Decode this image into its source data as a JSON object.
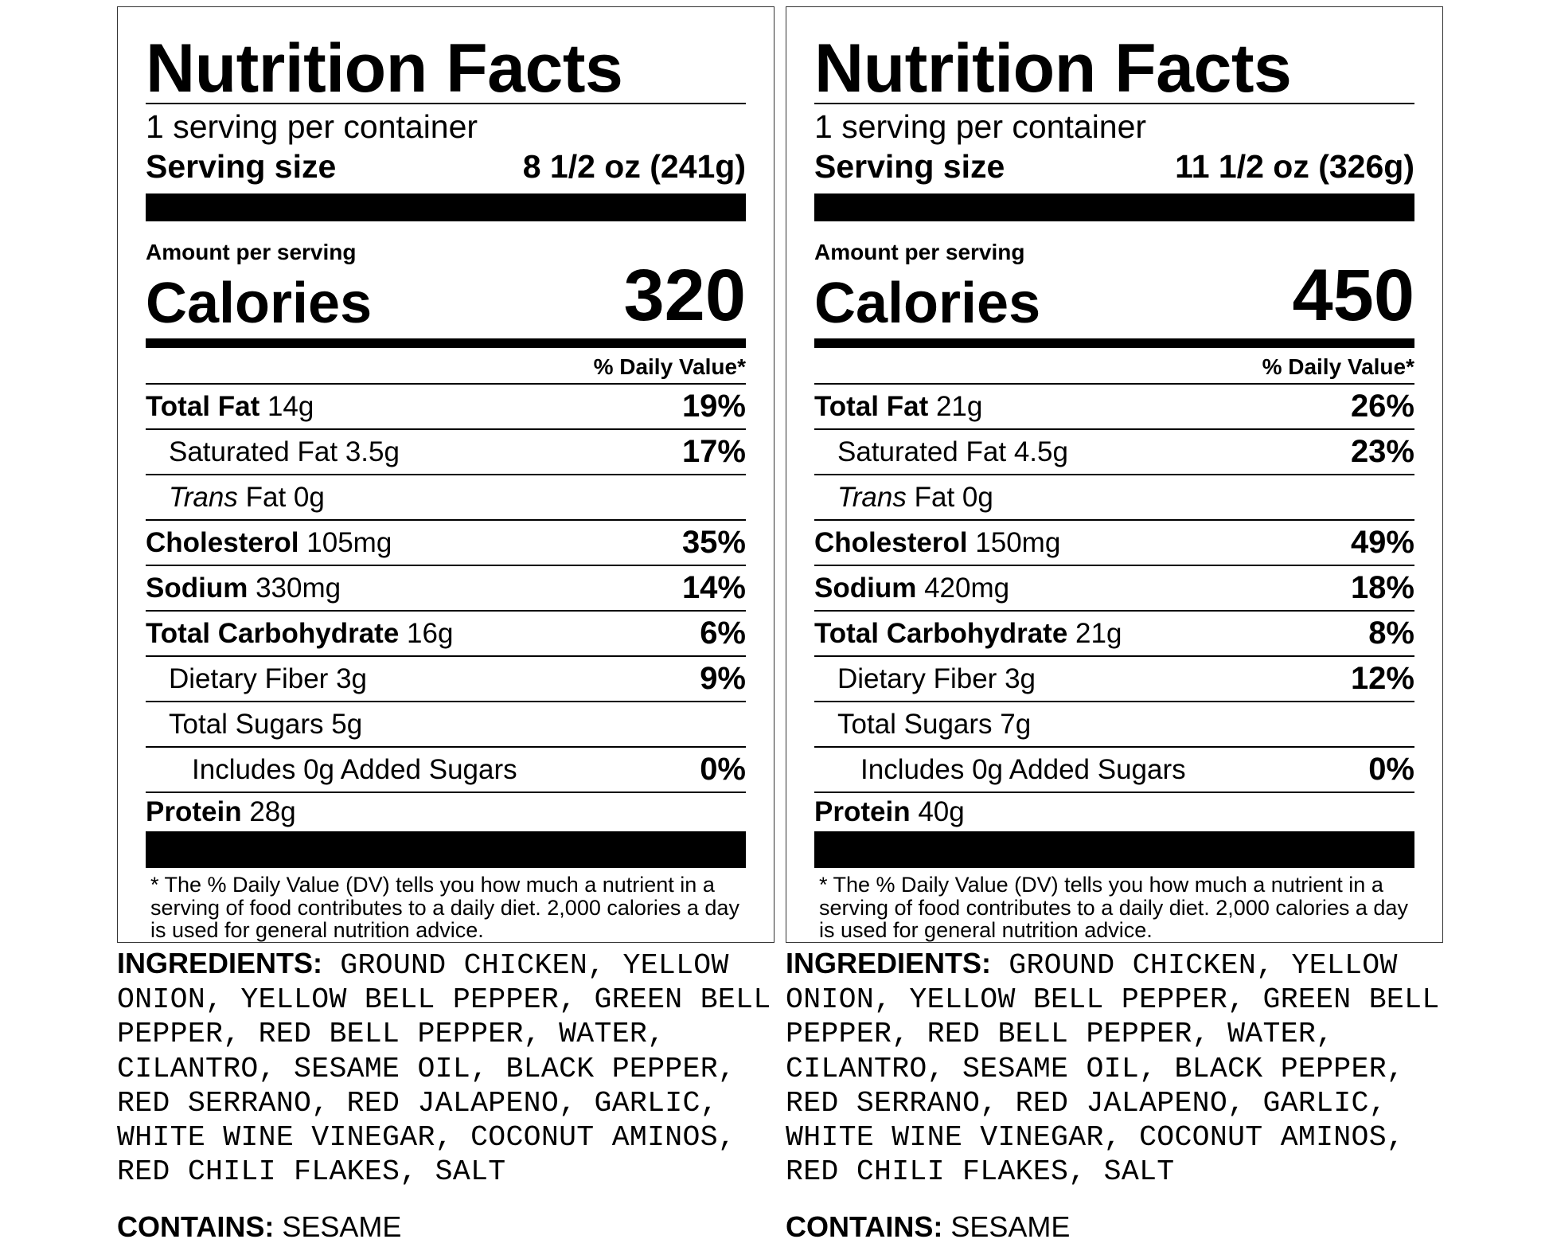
{
  "labels": [
    {
      "title": "Nutrition Facts",
      "servings": "1 serving per container",
      "serving_size_label": "Serving size",
      "serving_size": "8 1/2 oz (241g)",
      "amount_per_serving": "Amount per serving",
      "calories_label": "Calories",
      "calories": "320",
      "dv_header": "% Daily Value*",
      "rows": [
        {
          "label": "Total Fat",
          "amount": "14g",
          "dv": "19%"
        },
        {
          "label": "Saturated Fat",
          "amount": "3.5g",
          "dv": "17%"
        },
        {
          "label": "Trans",
          "amount": "Fat 0g",
          "dv": ""
        },
        {
          "label": "Cholesterol",
          "amount": "105mg",
          "dv": "35%"
        },
        {
          "label": "Sodium",
          "amount": "330mg",
          "dv": "14%"
        },
        {
          "label": "Total Carbohydrate",
          "amount": "16g",
          "dv": "6%"
        },
        {
          "label": "Dietary Fiber",
          "amount": "3g",
          "dv": "9%"
        },
        {
          "label": "Total Sugars",
          "amount": "5g",
          "dv": ""
        },
        {
          "label": "Includes 0g Added Sugars",
          "amount": "",
          "dv": "0%"
        },
        {
          "label": "Protein",
          "amount": "28g",
          "dv": ""
        }
      ],
      "footnote": "* The % Daily Value (DV) tells you how much a nutrient in a serving of food contributes to a daily diet. 2,000 calories a day is used for general nutrition advice.",
      "ingredients_label": "INGREDIENTS:",
      "ingredients": "GROUND CHICKEN, YELLOW ONION, YELLOW BELL PEPPER, GREEN BELL PEPPER, RED BELL PEPPER, WATER, CILANTRO, SESAME OIL, BLACK PEPPER, RED SERRANO, RED JALAPENO, GARLIC, WHITE WINE VINEGAR, COCONUT AMINOS, RED CHILI FLAKES, SALT",
      "contains_label": "CONTAINS:",
      "contains": "SESAME"
    },
    {
      "title": "Nutrition Facts",
      "servings": "1 serving per container",
      "serving_size_label": "Serving size",
      "serving_size": "11 1/2 oz (326g)",
      "amount_per_serving": "Amount per serving",
      "calories_label": "Calories",
      "calories": "450",
      "dv_header": "% Daily Value*",
      "rows": [
        {
          "label": "Total Fat",
          "amount": "21g",
          "dv": "26%"
        },
        {
          "label": "Saturated Fat",
          "amount": "4.5g",
          "dv": "23%"
        },
        {
          "label": "Trans",
          "amount": "Fat 0g",
          "dv": ""
        },
        {
          "label": "Cholesterol",
          "amount": "150mg",
          "dv": "49%"
        },
        {
          "label": "Sodium",
          "amount": "420mg",
          "dv": "18%"
        },
        {
          "label": "Total Carbohydrate",
          "amount": "21g",
          "dv": "8%"
        },
        {
          "label": "Dietary Fiber",
          "amount": "3g",
          "dv": "12%"
        },
        {
          "label": "Total Sugars",
          "amount": "7g",
          "dv": ""
        },
        {
          "label": "Includes 0g Added Sugars",
          "amount": "",
          "dv": "0%"
        },
        {
          "label": "Protein",
          "amount": "40g",
          "dv": ""
        }
      ],
      "footnote": "* The % Daily Value (DV) tells you how much a nutrient in a serving of food contributes to a daily diet. 2,000 calories a day is used for general nutrition advice.",
      "ingredients_label": "INGREDIENTS:",
      "ingredients": "GROUND CHICKEN, YELLOW ONION, YELLOW BELL PEPPER, GREEN BELL PEPPER, RED BELL PEPPER, WATER, CILANTRO, SESAME OIL, BLACK PEPPER, RED SERRANO, RED JALAPENO, GARLIC, WHITE WINE VINEGAR, COCONUT AMINOS, RED CHILI FLAKES, SALT",
      "contains_label": "CONTAINS:",
      "contains": "SESAME"
    }
  ]
}
